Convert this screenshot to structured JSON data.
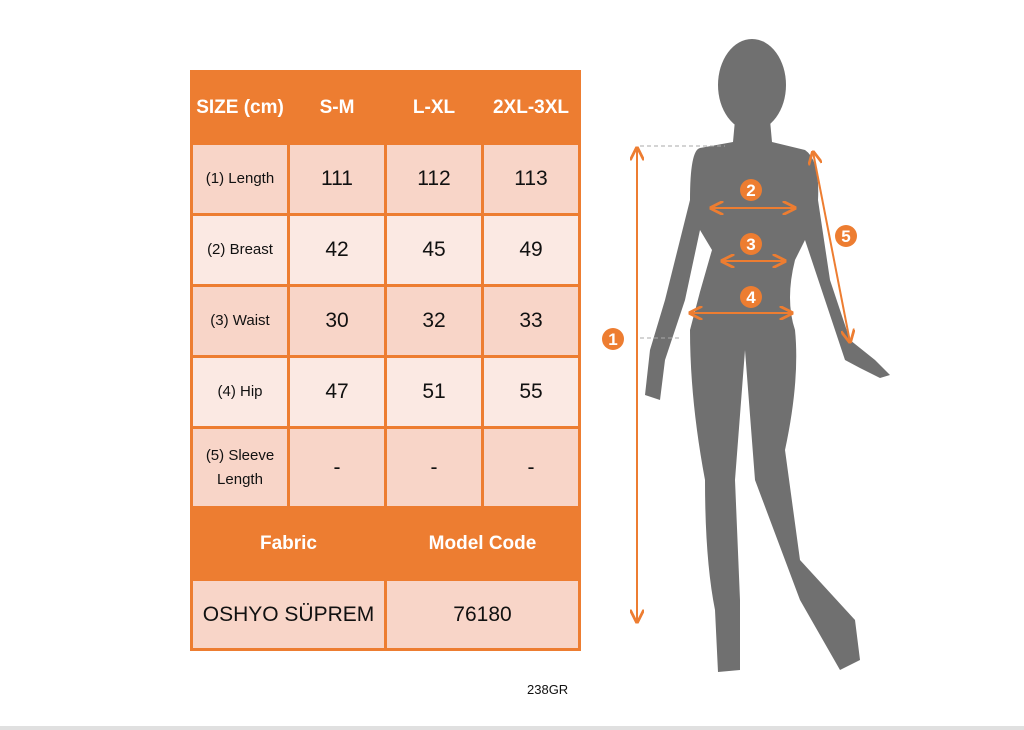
{
  "table": {
    "header": [
      "SIZE (cm)",
      "S-M",
      "L-XL",
      "2XL-3XL"
    ],
    "rows": [
      {
        "label": "(1) Length",
        "values": [
          "111",
          "112",
          "113"
        ]
      },
      {
        "label": "(2) Breast",
        "values": [
          "42",
          "45",
          "49"
        ]
      },
      {
        "label": "(3) Waist",
        "values": [
          "30",
          "32",
          "33"
        ]
      },
      {
        "label": "(4) Hip",
        "values": [
          "47",
          "51",
          "55"
        ]
      },
      {
        "label": "(5) Sleeve Length",
        "values": [
          "-",
          "-",
          "-"
        ]
      }
    ],
    "footer_header": [
      "Fabric",
      "Model Code"
    ],
    "footer_values": [
      "OSHYO SÜPREM",
      "76180"
    ]
  },
  "figure": {
    "markers": [
      "1",
      "2",
      "3",
      "4",
      "5"
    ]
  },
  "code": "238GR",
  "colors": {
    "accent": "#ED7D31",
    "row_dark": "#F8D5C8",
    "row_light": "#FBE9E3",
    "silhouette": "#707070"
  }
}
